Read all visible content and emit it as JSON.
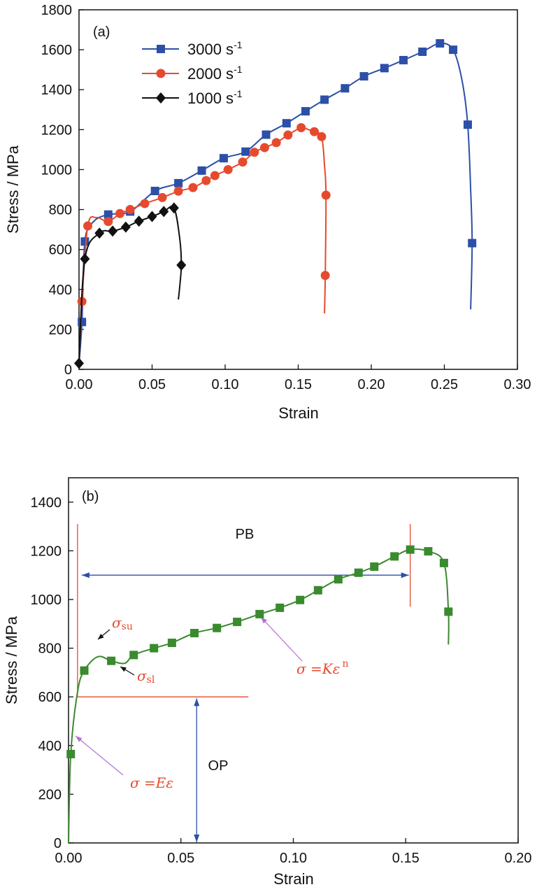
{
  "chart_data": [
    {
      "type": "line",
      "panel_label": "(a)",
      "xlabel": "Strain",
      "ylabel": "Stress / MPa",
      "xlim": [
        0,
        0.3
      ],
      "ylim": [
        0,
        1800
      ],
      "xticks": [
        "0.00",
        "0.05",
        "0.10",
        "0.15",
        "0.20",
        "0.25",
        "0.30"
      ],
      "yticks": [
        "0",
        "200",
        "400",
        "600",
        "800",
        "1000",
        "1200",
        "1400",
        "1600",
        "1800"
      ],
      "legend_position": "top-left",
      "series": [
        {
          "name_base": "3000 s",
          "name_sup": "-1",
          "color": "#2c4fa8",
          "marker": "square",
          "x": [
            0.0,
            0.002,
            0.004,
            0.01,
            0.02,
            0.035,
            0.052,
            0.068,
            0.084,
            0.099,
            0.114,
            0.128,
            0.142,
            0.155,
            0.168,
            0.182,
            0.195,
            0.209,
            0.222,
            0.235,
            0.247,
            0.256,
            0.262,
            0.266,
            0.268,
            0.269,
            0.268
          ],
          "y": [
            30,
            237,
            640,
            740,
            775,
            790,
            893,
            932,
            995,
            1057,
            1090,
            1175,
            1232,
            1292,
            1350,
            1407,
            1467,
            1508,
            1548,
            1590,
            1632,
            1600,
            1450,
            1225,
            900,
            632,
            300
          ],
          "marker_indices": [
            1,
            2,
            4,
            5,
            6,
            7,
            8,
            9,
            10,
            11,
            12,
            13,
            14,
            15,
            16,
            17,
            18,
            19,
            20,
            21,
            23,
            25
          ]
        },
        {
          "name_base": "2000 s",
          "name_sup": "-1",
          "color": "#e64a2e",
          "marker": "circle",
          "x": [
            0.0,
            0.002,
            0.006,
            0.012,
            0.02,
            0.028,
            0.035,
            0.045,
            0.057,
            0.068,
            0.078,
            0.087,
            0.093,
            0.102,
            0.112,
            0.12,
            0.127,
            0.135,
            0.143,
            0.152,
            0.157,
            0.161,
            0.166,
            0.168,
            0.169,
            0.1685,
            0.168
          ],
          "y": [
            30,
            340,
            718,
            760,
            740,
            780,
            800,
            830,
            860,
            892,
            910,
            945,
            970,
            1000,
            1038,
            1087,
            1110,
            1135,
            1173,
            1210,
            1200,
            1190,
            1165,
            1020,
            872,
            470,
            280
          ],
          "marker_indices": [
            1,
            2,
            4,
            5,
            6,
            7,
            8,
            9,
            10,
            11,
            12,
            13,
            14,
            15,
            16,
            17,
            18,
            19,
            21,
            22,
            24,
            25
          ]
        },
        {
          "name_base": "1000 s",
          "name_sup": "-1",
          "color": "#111111",
          "marker": "diamond",
          "x": [
            0.0,
            0.004,
            0.014,
            0.023,
            0.032,
            0.041,
            0.05,
            0.058,
            0.065,
            0.069,
            0.07,
            0.069,
            0.068
          ],
          "y": [
            30,
            553,
            682,
            692,
            712,
            742,
            765,
            790,
            808,
            650,
            522,
            420,
            350
          ],
          "marker_indices": [
            0,
            1,
            2,
            3,
            4,
            5,
            6,
            7,
            8,
            10
          ]
        }
      ]
    },
    {
      "type": "line",
      "panel_label": "(b)",
      "xlabel": "Strain",
      "ylabel": "Stress / MPa",
      "xlim": [
        0,
        0.2
      ],
      "ylim": [
        0,
        1500
      ],
      "xticks": [
        "0.00",
        "0.05",
        "0.10",
        "0.15",
        "0.20"
      ],
      "yticks": [
        "0",
        "200",
        "400",
        "600",
        "800",
        "1000",
        "1200",
        "1400"
      ],
      "series": [
        {
          "name": "",
          "color": "#3a8a2e",
          "marker": "square",
          "x": [
            0.0,
            0.001,
            0.004,
            0.007,
            0.013,
            0.019,
            0.025,
            0.029,
            0.038,
            0.046,
            0.056,
            0.066,
            0.075,
            0.085,
            0.094,
            0.103,
            0.111,
            0.12,
            0.129,
            0.136,
            0.145,
            0.152,
            0.16,
            0.167,
            0.169,
            0.169
          ],
          "y": [
            0,
            365,
            620,
            708,
            765,
            748,
            738,
            772,
            800,
            822,
            862,
            883,
            908,
            940,
            966,
            998,
            1038,
            1083,
            1110,
            1135,
            1177,
            1205,
            1198,
            1150,
            950,
            815
          ],
          "marker_indices": [
            1,
            3,
            5,
            7,
            8,
            9,
            10,
            11,
            12,
            13,
            14,
            15,
            16,
            17,
            18,
            19,
            20,
            21,
            22,
            23,
            24
          ]
        }
      ],
      "annotations": {
        "pb_label": "PB",
        "op_label": "OP",
        "sigma_su": {
          "base": "σ",
          "sub": "su"
        },
        "sigma_sl": {
          "base": "σ",
          "sub": "sl"
        },
        "sigma_k": {
          "lhs": "σ",
          "eq": " =",
          "k": "K",
          "eps": "ε",
          "sup": "n"
        },
        "sigma_e": {
          "lhs": "σ",
          "eq": " =",
          "e": "E",
          "eps": "ε"
        },
        "line_color": "#e64a2e",
        "arrow_color": "#2c4fa8",
        "pointer_color": "#b06fd8",
        "pb_x_range": [
          0.0,
          0.152
        ],
        "pb_y": 1100,
        "op_x": 0.057,
        "op_y_range": [
          0,
          600
        ],
        "red_h_y": 600,
        "red_h_x_range": [
          0.004,
          0.08
        ],
        "red_v1_x": 0.004,
        "red_v2_x": 0.152,
        "red_v_y_range": [
          600,
          1310
        ]
      }
    }
  ]
}
